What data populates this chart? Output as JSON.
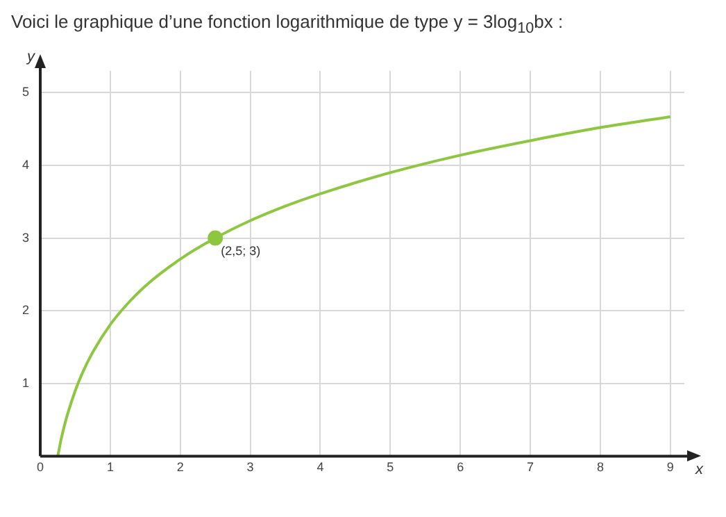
{
  "chart_data": {
    "type": "line",
    "title": "Voici le graphique d’une fonction logarithmique de type y = 3log$_{10}$bx :",
    "xlabel": "x",
    "ylabel": "y",
    "series": [
      {
        "color": "#8dc63f",
        "x": [
          0.25,
          0.3,
          0.35,
          0.4,
          0.5,
          0.6,
          0.75,
          1,
          1.25,
          1.5,
          2,
          2.5,
          3,
          3.5,
          4,
          5,
          6,
          7,
          8,
          9
        ],
        "values": [
          0,
          0.24,
          0.44,
          0.61,
          0.9,
          1.14,
          1.43,
          1.81,
          2.1,
          2.34,
          2.71,
          3,
          3.24,
          3.44,
          3.61,
          3.9,
          4.14,
          4.34,
          4.52,
          4.67
        ],
        "marker": "none"
      },
      {
        "type": "scatter",
        "color": "#8dc63f",
        "x": [
          2.5
        ],
        "values": [
          3
        ],
        "marker": "circle"
      }
    ],
    "annotations": [
      {
        "text": "(2,5; 3)",
        "x": 2.5,
        "y": 3
      }
    ],
    "xlim": [
      0,
      9.2
    ],
    "ylim": [
      0,
      5.3
    ],
    "xticks": [
      {
        "value": 0,
        "label": "0"
      },
      1,
      2,
      3,
      4,
      5,
      6,
      7,
      8,
      9
    ],
    "yticks": [
      {
        "value": 0,
        "label": null
      },
      1,
      2,
      3,
      4,
      5
    ],
    "grid": true,
    "legend": false
  }
}
